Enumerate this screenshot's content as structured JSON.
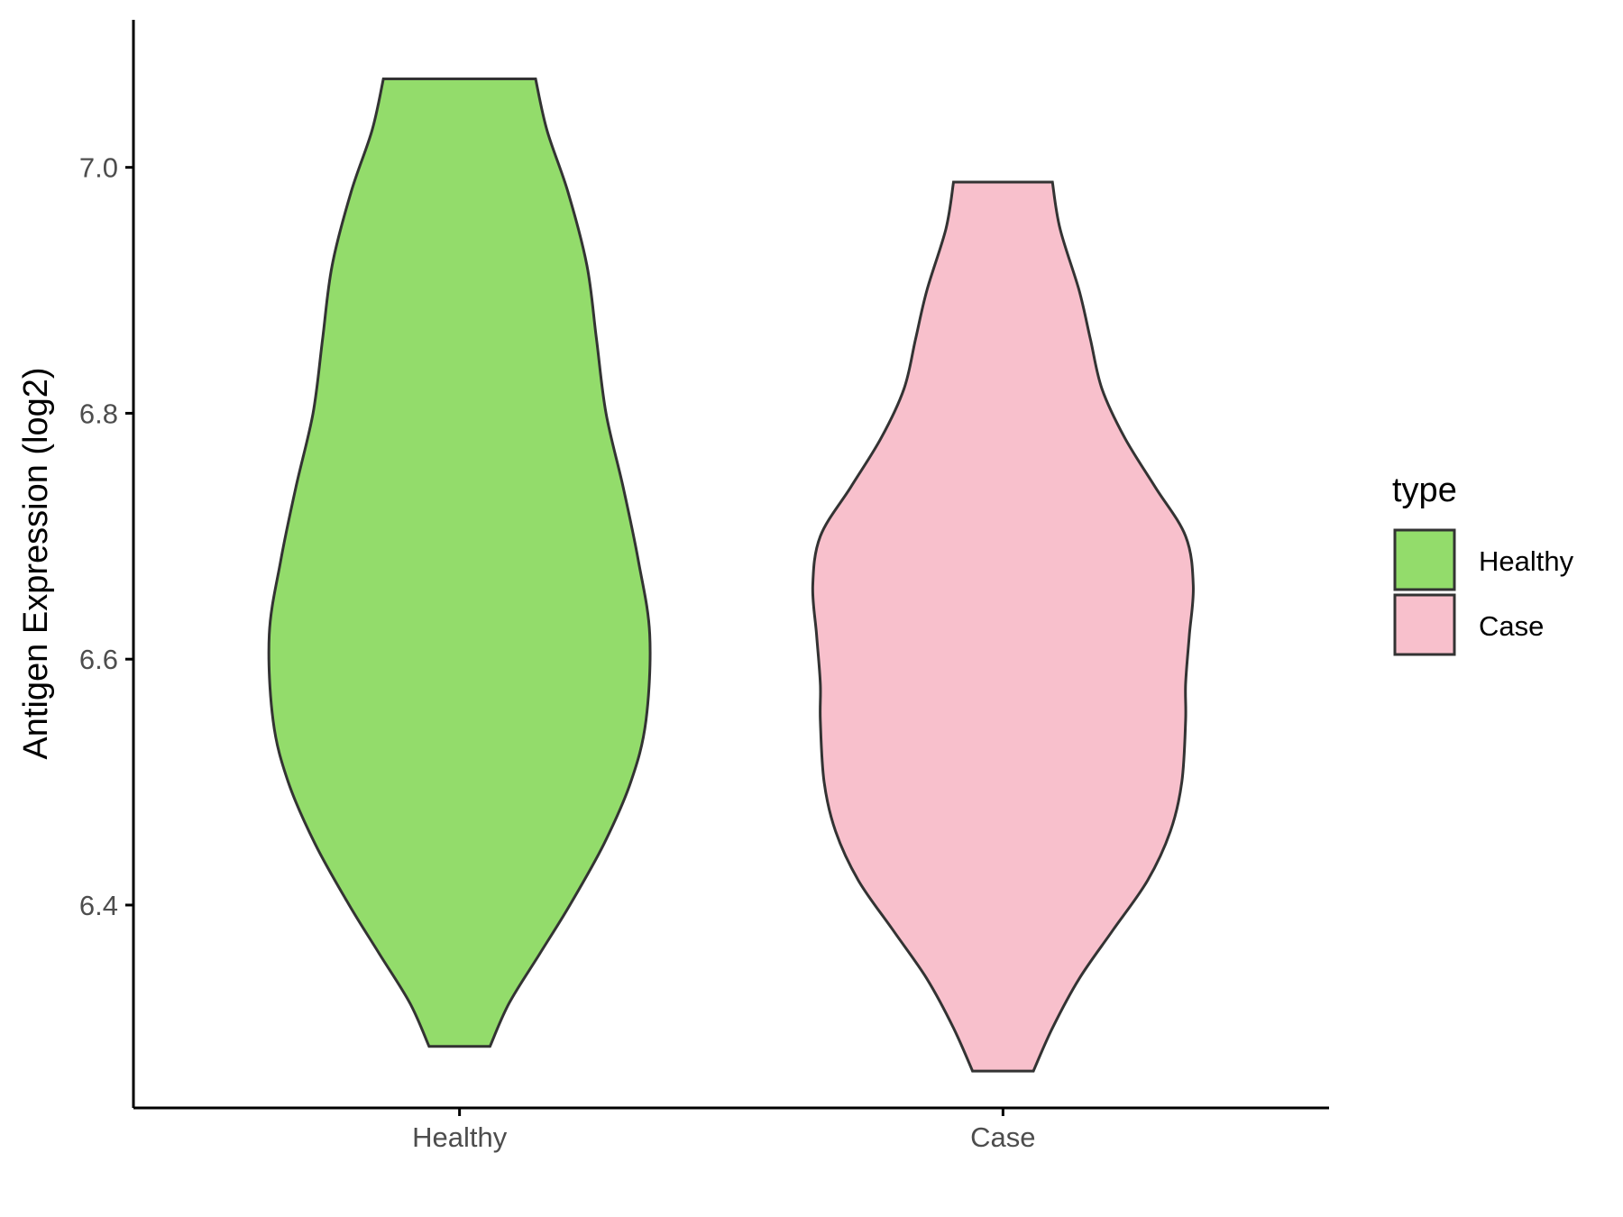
{
  "chart_data": {
    "type": "violin",
    "title": "",
    "xlabel": "",
    "ylabel": "Antigen Expression (log2)",
    "categories": [
      "Healthy",
      "Case"
    ],
    "ylim": [
      6.235,
      7.12
    ],
    "yticks": [
      6.4,
      6.6,
      6.8,
      7.0
    ],
    "ytick_labels": [
      "6.4",
      "6.6",
      "6.8",
      "7.0"
    ],
    "grid": false,
    "legend": {
      "title": "type",
      "position": "right",
      "entries": [
        {
          "label": "Healthy",
          "color": "#93DC6B"
        },
        {
          "label": "Case",
          "color": "#F8C0CC"
        }
      ]
    },
    "series": [
      {
        "name": "Healthy",
        "color": "#93DC6B",
        "min": 6.285,
        "max": 7.072,
        "density": [
          [
            6.285,
            0.16
          ],
          [
            6.32,
            0.26
          ],
          [
            6.36,
            0.42
          ],
          [
            6.4,
            0.58
          ],
          [
            6.45,
            0.76
          ],
          [
            6.5,
            0.9
          ],
          [
            6.55,
            0.98
          ],
          [
            6.62,
            1.0
          ],
          [
            6.68,
            0.94
          ],
          [
            6.74,
            0.86
          ],
          [
            6.8,
            0.77
          ],
          [
            6.86,
            0.72
          ],
          [
            6.92,
            0.67
          ],
          [
            6.98,
            0.57
          ],
          [
            7.03,
            0.46
          ],
          [
            7.072,
            0.4
          ]
        ]
      },
      {
        "name": "Case",
        "color": "#F8C0CC",
        "min": 6.265,
        "max": 6.988,
        "density": [
          [
            6.265,
            0.16
          ],
          [
            6.3,
            0.26
          ],
          [
            6.34,
            0.4
          ],
          [
            6.38,
            0.58
          ],
          [
            6.42,
            0.76
          ],
          [
            6.46,
            0.88
          ],
          [
            6.5,
            0.94
          ],
          [
            6.55,
            0.96
          ],
          [
            6.58,
            0.96
          ],
          [
            6.62,
            0.98
          ],
          [
            6.66,
            1.0
          ],
          [
            6.7,
            0.96
          ],
          [
            6.74,
            0.8
          ],
          [
            6.78,
            0.64
          ],
          [
            6.82,
            0.52
          ],
          [
            6.86,
            0.46
          ],
          [
            6.9,
            0.4
          ],
          [
            6.95,
            0.3
          ],
          [
            6.988,
            0.26
          ]
        ]
      }
    ]
  }
}
